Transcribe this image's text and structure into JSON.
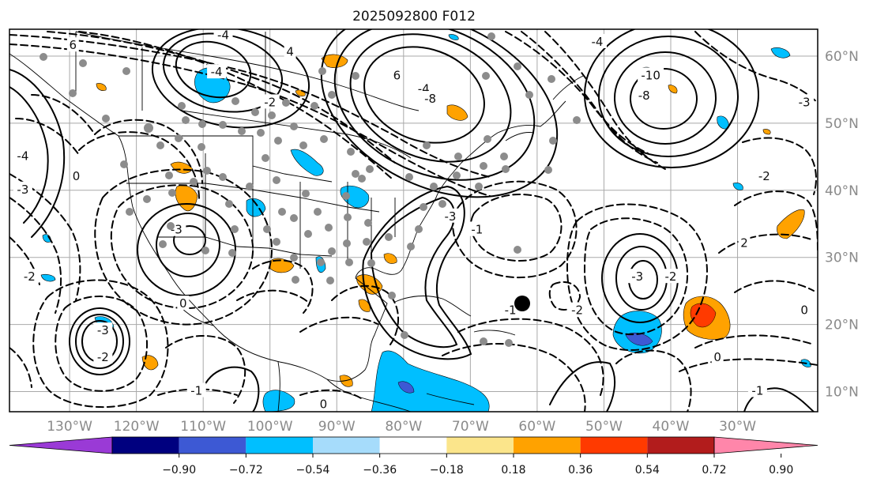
{
  "title": "2025092800 F012",
  "colors": {
    "grid": "#a9a9a9",
    "contour": "#000000",
    "coast": "#000000",
    "station_dot": "#8c8c8c",
    "storm_marker": "#000000"
  },
  "map": {
    "lon_range": [
      -139,
      -18
    ],
    "lat_range": [
      7,
      64
    ],
    "lon_ticks": [
      {
        "lon": -130,
        "label": "130°W"
      },
      {
        "lon": -120,
        "label": "120°W"
      },
      {
        "lon": -110,
        "label": "110°W"
      },
      {
        "lon": -100,
        "label": "100°W"
      },
      {
        "lon": -90,
        "label": "90°W"
      },
      {
        "lon": -80,
        "label": "80°W"
      },
      {
        "lon": -70,
        "label": "70°W"
      },
      {
        "lon": -60,
        "label": "60°W"
      },
      {
        "lon": -50,
        "label": "50°W"
      },
      {
        "lon": -40,
        "label": "40°W"
      },
      {
        "lon": -30,
        "label": "30°W"
      }
    ],
    "lat_ticks": [
      {
        "lat": 10,
        "label": "10°N"
      },
      {
        "lat": 20,
        "label": "20°N"
      },
      {
        "lat": 30,
        "label": "30°N"
      },
      {
        "lat": 40,
        "label": "40°N"
      },
      {
        "lat": 50,
        "label": "50°N"
      },
      {
        "lat": 60,
        "label": "60°N"
      }
    ],
    "contour_labels": [
      {
        "text": "6",
        "lon": -129.5,
        "lat": 61.5
      },
      {
        "text": "-4",
        "lon": -107,
        "lat": 63
      },
      {
        "text": "4",
        "lon": -97,
        "lat": 60.5
      },
      {
        "text": "-4",
        "lon": -108,
        "lat": 57.5
      },
      {
        "text": "-2",
        "lon": -100,
        "lat": 53
      },
      {
        "text": "6",
        "lon": -81,
        "lat": 57
      },
      {
        "text": "-4",
        "lon": -77,
        "lat": 55
      },
      {
        "text": "-8",
        "lon": -76,
        "lat": 53.5
      },
      {
        "text": "-4",
        "lon": -51,
        "lat": 62
      },
      {
        "text": "-10",
        "lon": -43,
        "lat": 57
      },
      {
        "text": "-8",
        "lon": -44,
        "lat": 54
      },
      {
        "text": "-3",
        "lon": -20,
        "lat": 53
      },
      {
        "text": "-4",
        "lon": -137,
        "lat": 45
      },
      {
        "text": "-3",
        "lon": -137,
        "lat": 40
      },
      {
        "text": "0",
        "lon": -129,
        "lat": 42
      },
      {
        "text": "-3",
        "lon": -114,
        "lat": 34
      },
      {
        "text": "0",
        "lon": -113,
        "lat": 23
      },
      {
        "text": "-2",
        "lon": -136,
        "lat": 27
      },
      {
        "text": "-3",
        "lon": -125,
        "lat": 19
      },
      {
        "text": "-2",
        "lon": -125,
        "lat": 15
      },
      {
        "text": "-1",
        "lon": -111,
        "lat": 10
      },
      {
        "text": "-3",
        "lon": -73,
        "lat": 36
      },
      {
        "text": "-1",
        "lon": -69,
        "lat": 34
      },
      {
        "text": "-2",
        "lon": -54,
        "lat": 22
      },
      {
        "text": "-3",
        "lon": -45,
        "lat": 27
      },
      {
        "text": "-2",
        "lon": -40,
        "lat": 27
      },
      {
        "text": "-1",
        "lon": -64,
        "lat": 22
      },
      {
        "text": "0",
        "lon": -33,
        "lat": 15
      },
      {
        "text": "0",
        "lon": -20,
        "lat": 22
      },
      {
        "text": "-2",
        "lon": -26,
        "lat": 42
      },
      {
        "text": "-1",
        "lon": -27,
        "lat": 10
      },
      {
        "text": "0",
        "lon": -92,
        "lat": 8
      },
      {
        "text": "2",
        "lon": -29,
        "lat": 32
      }
    ]
  },
  "colorbar": {
    "colors": [
      "#9a3ad6",
      "#00007f",
      "#3d59d4",
      "#00bfff",
      "#a6dcfb",
      "#ffffff",
      "#fbe58b",
      "#ffa200",
      "#ff3a00",
      "#b21c1c",
      "#ff86aa"
    ],
    "labels": [
      "−0.90",
      "−0.72",
      "−0.54",
      "−0.36",
      "−0.18",
      "0.18",
      "0.36",
      "0.54",
      "0.72",
      "0.90"
    ]
  }
}
